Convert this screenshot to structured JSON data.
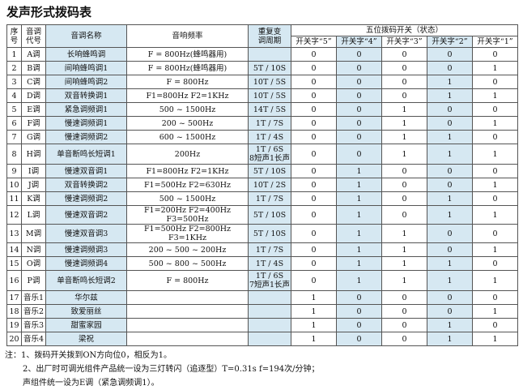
{
  "title": "发声形式拨码表",
  "table": {
    "headers": [
      "序\n号",
      "音调\n代号",
      "音调名称",
      "音响频率",
      "重复变\n调周期",
      "五位拨码开关（状态）"
    ],
    "switch_headers": [
      "开关字“5”",
      "开关字“4”",
      "开关字“3”",
      "开关字“2”",
      "开关字“1”"
    ],
    "rows": [
      [
        "1",
        "A调",
        "长响蜂鸣调",
        "F = 800Hz(蜂鸣器用)",
        null,
        "0",
        "0",
        "0",
        "0",
        "0"
      ],
      [
        "2",
        "B调",
        "间响蜂鸣调1",
        "F = 800Hz(蜂鸣器用)",
        "5T / 10S",
        "0",
        "0",
        "0",
        "0",
        "1"
      ],
      [
        "3",
        "C调",
        "间响蜂鸣调2",
        "F = 800Hz",
        "10T / 5S",
        "0",
        "0",
        "0",
        "1",
        "0"
      ],
      [
        "4",
        "D调",
        "双音转换调1",
        "F1=800Hz   F2=1KHz",
        "10T / 5S",
        "0",
        "0",
        "0",
        "1",
        "1"
      ],
      [
        "5",
        "E调",
        "紧急调频调1",
        "500 ~ 1500Hz",
        "14T / 5S",
        "0",
        "0",
        "1",
        "0",
        "0"
      ],
      [
        "6",
        "F调",
        "慢速调频调1",
        "200 ~ 500Hz",
        "1T / 7S",
        "0",
        "0",
        "1",
        "0",
        "1"
      ],
      [
        "7",
        "G调",
        "慢速调频调2",
        "600 ~ 1500Hz",
        "1T / 4S",
        "0",
        "0",
        "1",
        "1",
        "0"
      ],
      [
        "8",
        "H调",
        "单音断鸣长短调1",
        "200Hz",
        "1T / 6S\n8短声1长声",
        "0",
        "0",
        "1",
        "1",
        "1"
      ],
      [
        "9",
        "I调",
        "慢速双音调1",
        "F1=800Hz   F2=1KHz",
        "5T / 10S",
        "0",
        "1",
        "0",
        "0",
        "0"
      ],
      [
        "10",
        "J调",
        "双音转换调2",
        "F1=500Hz   F2=630Hz",
        "10T / 2S",
        "0",
        "1",
        "0",
        "0",
        "1"
      ],
      [
        "11",
        "K调",
        "慢速调频调2",
        "500 ~ 1500Hz",
        "1T / 7S",
        "0",
        "1",
        "0",
        "1",
        "0"
      ],
      [
        "12",
        "L调",
        "慢速双音调2",
        "F1=200Hz F2=400Hz F3=500Hz",
        "5T / 10S",
        "0",
        "1",
        "0",
        "1",
        "1"
      ],
      [
        "13",
        "M调",
        "慢速双音调3",
        "F1=500Hz F2=800Hz F3=1KHz",
        "5T / 10S",
        "0",
        "1",
        "1",
        "0",
        "0"
      ],
      [
        "14",
        "N调",
        "慢速调频调3",
        "200 ~ 500 ~ 200Hz",
        "1T / 7S",
        "0",
        "1",
        "1",
        "0",
        "1"
      ],
      [
        "15",
        "O调",
        "慢速调频调4",
        "500 ~ 800 ~ 500Hz",
        "1T / 4S",
        "0",
        "1",
        "1",
        "1",
        "0"
      ],
      [
        "16",
        "P调",
        "单音断鸣长短调2",
        "F = 800Hz",
        "1T / 6S\n7短声1长声",
        "0",
        "1",
        "1",
        "1",
        "1"
      ],
      [
        "17",
        "音乐1",
        "华尔兹",
        null,
        null,
        "1",
        "0",
        "0",
        "0",
        "0"
      ],
      [
        "18",
        "音乐2",
        "致爱丽丝",
        null,
        null,
        "1",
        "0",
        "0",
        "0",
        "1"
      ],
      [
        "19",
        "音乐3",
        "甜蜜家园",
        null,
        null,
        "1",
        "0",
        "0",
        "1",
        "0"
      ],
      [
        "20",
        "音乐4",
        "梁祝",
        null,
        null,
        "1",
        "0",
        "0",
        "1",
        "1"
      ]
    ]
  },
  "notes": [
    "注：1、拨码开关拨到ON方向位0，相反为1。",
    "2、出厂时可调光组件产品统一设为三灯转闪（追逐型）T=0.31s f=194次/分钟；",
    "声组件统一设为E调（紧急调频调1）。"
  ]
}
